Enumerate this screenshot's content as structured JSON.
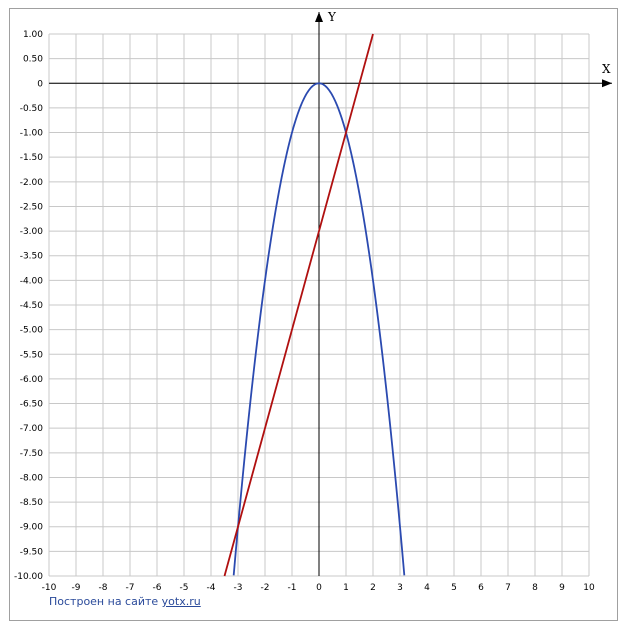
{
  "chart_data": {
    "type": "line",
    "xlabel": "X",
    "ylabel": "Y",
    "xlim": [
      -10,
      10
    ],
    "ylim": [
      -10,
      1
    ],
    "grid": true,
    "x_ticks": [
      "-10",
      "-9",
      "-8",
      "-7",
      "-6",
      "-5",
      "-4",
      "-3",
      "-2",
      "-1",
      "0",
      "1",
      "2",
      "3",
      "4",
      "5",
      "6",
      "7",
      "8",
      "9",
      "10"
    ],
    "y_ticks": [
      "1.00",
      "0.50",
      "0",
      "-0.50",
      "-1.00",
      "-1.50",
      "-2.00",
      "-2.50",
      "-3.00",
      "-3.50",
      "-4.00",
      "-4.50",
      "-5.00",
      "-5.50",
      "-6.00",
      "-6.50",
      "-7.00",
      "-7.50",
      "-8.00",
      "-8.50",
      "-9.00",
      "-9.50",
      "-10.00"
    ],
    "series": [
      {
        "color": "#2b4ab0",
        "x": [
          -3.16,
          -3,
          -2.5,
          -2,
          -1.5,
          -1,
          -0.5,
          0,
          0.5,
          1,
          1.5,
          2,
          2.5,
          3,
          3.16
        ],
        "y": [
          -10,
          -9,
          -6.25,
          -4,
          -2.25,
          -1,
          -0.25,
          0,
          -0.25,
          -1,
          -2.25,
          -4,
          -6.25,
          -9,
          -10
        ]
      },
      {
        "color": "#b01010",
        "x": [
          -3.5,
          2
        ],
        "y": [
          -10,
          1
        ]
      }
    ]
  },
  "footer": {
    "credit_text": "Построен на сайте",
    "credit_link": "yotx.ru"
  }
}
